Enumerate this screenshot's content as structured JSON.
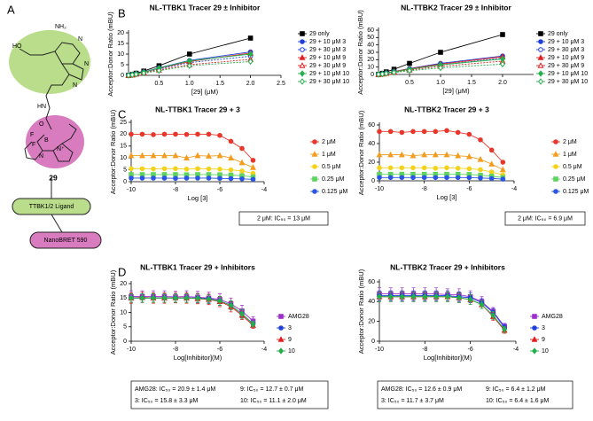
{
  "panels": [
    "A",
    "B",
    "C",
    "D"
  ],
  "structure": {
    "label": "29",
    "ligand": "TTBK1/2 Ligand",
    "dye": "NanoBRET 590",
    "atoms": [
      "HO",
      "NH₂",
      "N",
      "N",
      "N",
      "HN",
      "O",
      "F",
      "F",
      "B",
      "N⁺",
      "N"
    ]
  },
  "chart_data": [
    {
      "type": "line",
      "title": "NL-TTBK1 Tracer 29 ± Inhibitor",
      "xlabel": "[29] (μM)",
      "ylabel": "Acceptor:Donor Ratio (mBU)",
      "x": [
        0,
        0.0625,
        0.125,
        0.25,
        0.5,
        1,
        2
      ],
      "xlim": [
        0,
        2.5
      ],
      "xticks": [
        0.5,
        {
          "value": 1,
          "label": "1.0"
        },
        1.5,
        {
          "value": 2,
          "label": "2.0"
        },
        2.5
      ],
      "ylim": [
        0,
        20
      ],
      "yticks": [
        0,
        5,
        10,
        15,
        20
      ],
      "series": [
        {
          "name": "29 only",
          "color": "#000000",
          "marker": "square",
          "filled": true,
          "dashed": false,
          "values": [
            0,
            0.4,
            1,
            2,
            4.5,
            10,
            17.5
          ]
        },
        {
          "name": "29 + 10 μM 3",
          "color": "#1f3fdc",
          "marker": "circle",
          "filled": true,
          "dashed": false,
          "values": [
            0,
            0.3,
            0.8,
            1.6,
            3.5,
            7,
            11
          ]
        },
        {
          "name": "29 + 30 μM 3",
          "color": "#1f3fdc",
          "marker": "circle",
          "filled": false,
          "dashed": true,
          "values": [
            0,
            0.3,
            0.7,
            1.4,
            3,
            6,
            9
          ]
        },
        {
          "name": "29 + 10 μM 9",
          "color": "#e02020",
          "marker": "triangle",
          "filled": true,
          "dashed": false,
          "values": [
            0,
            0.3,
            0.8,
            1.5,
            3.3,
            6.5,
            10.5
          ]
        },
        {
          "name": "29 + 30 μM 9",
          "color": "#e02020",
          "marker": "triangle",
          "filled": false,
          "dashed": true,
          "values": [
            0,
            0.2,
            0.6,
            1.2,
            2.5,
            5,
            7.5
          ]
        },
        {
          "name": "29 + 10 μM 10",
          "color": "#22b04a",
          "marker": "diamond",
          "filled": true,
          "dashed": false,
          "values": [
            0,
            0.3,
            0.8,
            1.5,
            3.4,
            6.8,
            10
          ]
        },
        {
          "name": "29 + 30 μM 10",
          "color": "#22b04a",
          "marker": "diamond",
          "filled": false,
          "dashed": true,
          "values": [
            0,
            0.2,
            0.5,
            1,
            2.2,
            4.5,
            6.5
          ]
        }
      ]
    },
    {
      "type": "line",
      "title": "NL-TTBK2 Tracer 29 ± Inhibitor",
      "xlabel": "[29] (μM)",
      "ylabel": "Acceptor:Donor Ratio (mBU)",
      "x": [
        0,
        0.0625,
        0.125,
        0.25,
        0.5,
        1,
        2
      ],
      "xlim": [
        0,
        2.5
      ],
      "xticks": [
        0.5,
        {
          "value": 1,
          "label": "1.0"
        },
        1.5,
        {
          "value": 2,
          "label": "2.0"
        }
      ],
      "ylim": [
        0,
        60
      ],
      "yticks": [
        0,
        10,
        20,
        30,
        40,
        50,
        60
      ],
      "series": [
        {
          "name": "29 only",
          "color": "#000000",
          "marker": "square",
          "filled": true,
          "dashed": false,
          "values": [
            0,
            1.5,
            3.5,
            7,
            15,
            30,
            54
          ]
        },
        {
          "name": "29 + 10 μM 3",
          "color": "#1f3fdc",
          "marker": "circle",
          "filled": true,
          "dashed": false,
          "values": [
            0,
            0.8,
            2,
            4,
            8,
            15,
            25
          ]
        },
        {
          "name": "29 + 30 μM 3",
          "color": "#1f3fdc",
          "marker": "circle",
          "filled": false,
          "dashed": true,
          "values": [
            0,
            0.7,
            1.8,
            3.5,
            7,
            13,
            22
          ]
        },
        {
          "name": "29 + 10 μM 9",
          "color": "#e02020",
          "marker": "triangle",
          "filled": true,
          "dashed": false,
          "values": [
            0,
            0.8,
            2,
            4,
            7.5,
            14,
            24
          ]
        },
        {
          "name": "29 + 30 μM 9",
          "color": "#e02020",
          "marker": "triangle",
          "filled": false,
          "dashed": true,
          "values": [
            0,
            0.6,
            1.5,
            3,
            6,
            11,
            18
          ]
        },
        {
          "name": "29 + 10 μM 10",
          "color": "#22b04a",
          "marker": "diamond",
          "filled": true,
          "dashed": false,
          "values": [
            0,
            0.7,
            1.8,
            3.5,
            7,
            13,
            21
          ]
        },
        {
          "name": "29 + 30 μM 10",
          "color": "#22b04a",
          "marker": "diamond",
          "filled": false,
          "dashed": true,
          "values": [
            0,
            0.5,
            1.3,
            2.6,
            5,
            9,
            14
          ]
        }
      ]
    },
    {
      "type": "line",
      "title": "NL-TTBK1 Tracer 29 + 3",
      "xlabel": "Log [3]",
      "ylabel": "Acceptor:Donor Ratio (mBU)",
      "x": [
        -10,
        -9.5,
        -9,
        -8.5,
        -8,
        -7.5,
        -7,
        -6.5,
        -6,
        -5.5,
        -5,
        -4.5
      ],
      "xlim": [
        -10,
        -4
      ],
      "xticks": [
        -10,
        -8,
        -6,
        -4
      ],
      "ylim": [
        0,
        25
      ],
      "yticks": [
        0,
        5,
        10,
        15,
        20,
        25
      ],
      "annotations": [
        "2 μM: IC₅₀ = 13 μM"
      ],
      "series": [
        {
          "name": "2 μM",
          "color": "#e8362a",
          "marker": "circle",
          "filled": true,
          "dashed": false,
          "values": [
            20,
            20,
            19.8,
            20,
            20,
            19.9,
            20,
            20,
            19.5,
            17,
            14,
            9
          ]
        },
        {
          "name": "1 μM",
          "color": "#f39c1f",
          "marker": "triangle",
          "filled": true,
          "dashed": false,
          "values": [
            11,
            11,
            11,
            11,
            11,
            10,
            11,
            10.8,
            11,
            10,
            8,
            6
          ]
        },
        {
          "name": "0.5 μM",
          "color": "#f4d21b",
          "marker": "circle",
          "filled": true,
          "dashed": false,
          "values": [
            5.5,
            5.5,
            5.4,
            5.5,
            5.5,
            5.3,
            5.5,
            5.4,
            5.3,
            5,
            4.5,
            3.5
          ]
        },
        {
          "name": "0.25 μM",
          "color": "#5fd35f",
          "marker": "square",
          "filled": true,
          "dashed": false,
          "values": [
            3,
            3,
            3,
            3,
            3,
            2.9,
            3,
            3,
            2.9,
            2.8,
            2.5,
            2
          ]
        },
        {
          "name": "0.125 μM",
          "color": "#2a55e6",
          "marker": "circle",
          "filled": true,
          "dashed": false,
          "values": [
            1.5,
            1.5,
            1.5,
            1.5,
            1.4,
            1.5,
            1.5,
            1.5,
            1.4,
            1.3,
            1.2,
            1
          ]
        }
      ]
    },
    {
      "type": "line",
      "title": "NL-TTBK2 Tracer 29 + 3",
      "xlabel": "Log [3]",
      "ylabel": "Acceptor:Donor Ratio (mBU)",
      "x": [
        -10,
        -9.5,
        -9,
        -8.5,
        -8,
        -7.5,
        -7,
        -6.5,
        -6,
        -5.5,
        -5,
        -4.5
      ],
      "xlim": [
        -10,
        -4
      ],
      "xticks": [
        -10,
        -8,
        -6,
        -4
      ],
      "ylim": [
        0,
        60
      ],
      "yticks": [
        0,
        20,
        40,
        60
      ],
      "annotations": [
        "2 μM: IC₅₀ = 6.9 μM"
      ],
      "series": [
        {
          "name": "2 μM",
          "color": "#e8362a",
          "marker": "circle",
          "filled": true,
          "dashed": false,
          "values": [
            53,
            53,
            52,
            53,
            53,
            53,
            54,
            52,
            50,
            44,
            33,
            20
          ]
        },
        {
          "name": "1 μM",
          "color": "#f39c1f",
          "marker": "triangle",
          "filled": true,
          "dashed": false,
          "values": [
            28,
            28,
            28,
            27,
            28,
            28,
            28,
            27,
            26,
            23,
            18,
            12
          ]
        },
        {
          "name": "0.5 μM",
          "color": "#f4d21b",
          "marker": "circle",
          "filled": true,
          "dashed": false,
          "values": [
            14,
            14,
            14,
            14,
            14,
            13.5,
            14,
            13.5,
            13,
            12,
            9.5,
            6.5
          ]
        },
        {
          "name": "0.25 μM",
          "color": "#5fd35f",
          "marker": "square",
          "filled": true,
          "dashed": false,
          "values": [
            7,
            7,
            7,
            7,
            7,
            7,
            7,
            7,
            6.8,
            6,
            5,
            3.5
          ]
        },
        {
          "name": "0.125 μM",
          "color": "#2a55e6",
          "marker": "circle",
          "filled": true,
          "dashed": false,
          "values": [
            3.5,
            3.5,
            3.5,
            3.5,
            3.5,
            3.5,
            3.5,
            3.5,
            3.4,
            3,
            2.5,
            1.8
          ]
        }
      ]
    },
    {
      "type": "line",
      "title": "NL-TTBK1 Tracer 29 + Inhibitors",
      "xlabel": "Log[Inhibitor](M)",
      "ylabel": "Acceptor:Donor Ratio (mBU)",
      "x": [
        -10,
        -9.5,
        -9,
        -8.5,
        -8,
        -7.5,
        -7,
        -6.5,
        -6,
        -5.5,
        -5,
        -4.5
      ],
      "xlim": [
        -10,
        -4
      ],
      "xticks": [
        -10,
        -8,
        -6,
        -4
      ],
      "ylim": [
        0,
        20
      ],
      "yticks": [
        0,
        5,
        10,
        15,
        20
      ],
      "annotations": [
        "AMG28: IC₅₀ = 20.9 ± 1.4 μM",
        "9: IC₅₀ = 12.7 ± 0.7 μM",
        "3: IC₅₀ = 15.8 ± 3.3 μM",
        "10: IC₅₀ = 11.1 ± 2.0 μM"
      ],
      "series": [
        {
          "name": "AMG28",
          "color": "#9b30c8",
          "marker": "square",
          "filled": true,
          "dashed": false,
          "values": [
            15.5,
            15.5,
            15.5,
            15.5,
            15.4,
            15.5,
            15.3,
            15,
            14.5,
            13,
            10.5,
            7
          ],
          "errors": [
            2,
            2,
            2,
            2,
            2,
            2,
            2,
            2,
            2,
            2,
            2,
            1.5
          ]
        },
        {
          "name": "3",
          "color": "#1f3fdc",
          "marker": "circle",
          "filled": true,
          "dashed": false,
          "values": [
            15,
            15,
            15,
            15,
            15,
            15,
            15,
            14.8,
            14,
            12.5,
            9.5,
            6
          ],
          "errors": [
            1.5,
            1.5,
            1.5,
            1.5,
            1.5,
            1.5,
            1.5,
            1.5,
            1.5,
            1.5,
            1.5,
            1
          ]
        },
        {
          "name": "9",
          "color": "#e02020",
          "marker": "triangle",
          "filled": true,
          "dashed": false,
          "values": [
            15,
            15.2,
            15,
            15,
            15.1,
            15,
            14.8,
            14.5,
            13.8,
            12,
            9,
            5.5
          ],
          "errors": [
            1.8,
            1.8,
            1.8,
            1.8,
            1.8,
            1.8,
            1.8,
            1.8,
            1.8,
            1.8,
            1.5,
            1
          ]
        },
        {
          "name": "10",
          "color": "#22b04a",
          "marker": "diamond",
          "filled": true,
          "dashed": false,
          "values": [
            15,
            15,
            15,
            15,
            15,
            15,
            14.9,
            14.6,
            14,
            12.5,
            9.5,
            6
          ],
          "errors": [
            1.5,
            1.5,
            1.5,
            1.5,
            1.5,
            1.5,
            1.5,
            1.5,
            1.5,
            1.5,
            1.5,
            1
          ]
        }
      ]
    },
    {
      "type": "line",
      "title": "NL-TTBK2 Tracer 29 + Inhibitors",
      "xlabel": "Log[Inhibitor](M)",
      "ylabel": "Acceptor:Donor Ratio (mBU)",
      "x": [
        -10,
        -9.5,
        -9,
        -8.5,
        -8,
        -7.5,
        -7,
        -6.5,
        -6,
        -5.5,
        -5,
        -4.5
      ],
      "xlim": [
        -10,
        -4
      ],
      "xticks": [
        -10,
        -8,
        -6,
        -4
      ],
      "ylim": [
        0,
        60
      ],
      "yticks": [
        0,
        20,
        40,
        60
      ],
      "annotations": [
        "AMG28: IC₅₀ = 12.6 ± 0.9 μM",
        "9: IC₅₀ = 6.4 ± 1.2 μM",
        "3: IC₅₀ = 11.7 ± 3.7 μM",
        "10: IC₅₀ = 6.4 ± 1.6 μM"
      ],
      "series": [
        {
          "name": "AMG28",
          "color": "#9b30c8",
          "marker": "square",
          "filled": true,
          "dashed": false,
          "values": [
            48,
            48,
            48,
            48,
            48,
            48,
            47,
            47,
            45,
            40,
            30,
            15
          ],
          "errors": [
            6,
            6,
            6,
            6,
            6,
            6,
            6,
            6,
            6,
            5,
            4,
            3
          ]
        },
        {
          "name": "3",
          "color": "#1f3fdc",
          "marker": "circle",
          "filled": true,
          "dashed": false,
          "values": [
            46,
            46,
            46,
            46,
            46,
            46,
            46,
            45,
            44,
            39,
            29,
            14
          ],
          "errors": [
            5,
            5,
            5,
            5,
            5,
            5,
            5,
            5,
            5,
            4,
            4,
            3
          ]
        },
        {
          "name": "9",
          "color": "#e02020",
          "marker": "triangle",
          "filled": true,
          "dashed": false,
          "values": [
            45,
            45,
            45,
            45,
            45,
            45,
            45,
            44,
            42,
            37,
            25,
            11
          ],
          "errors": [
            5,
            5,
            5,
            5,
            5,
            5,
            5,
            5,
            5,
            4,
            4,
            3
          ]
        },
        {
          "name": "10",
          "color": "#22b04a",
          "marker": "diamond",
          "filled": true,
          "dashed": false,
          "values": [
            45,
            45,
            45,
            45,
            45,
            45,
            45,
            44,
            42,
            37,
            26,
            12
          ],
          "errors": [
            5,
            5,
            5,
            5,
            5,
            5,
            5,
            5,
            5,
            4,
            4,
            3
          ]
        }
      ]
    }
  ]
}
